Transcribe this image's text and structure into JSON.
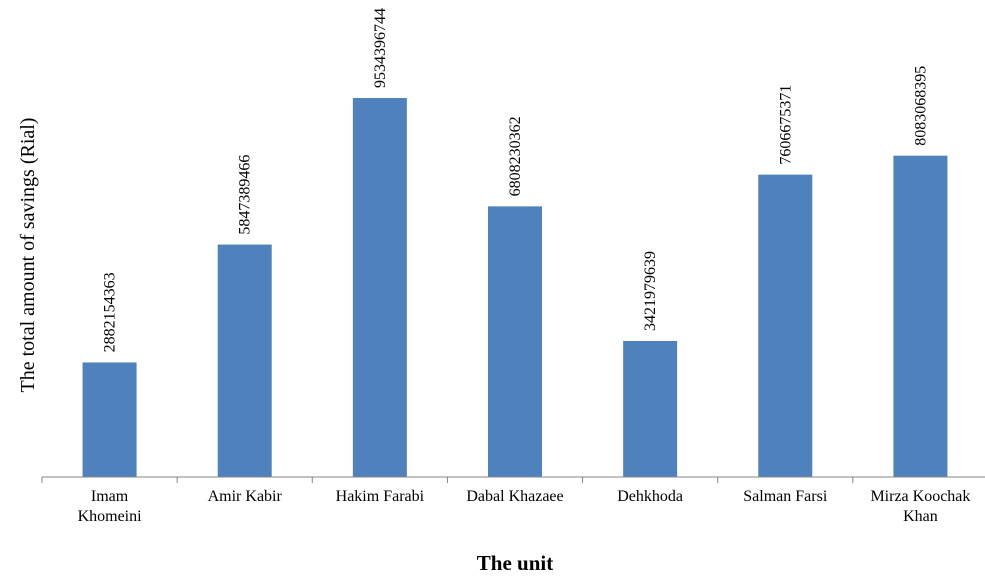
{
  "chart_data": {
    "type": "bar",
    "title": "",
    "xlabel": "The unit",
    "ylabel": "The total amount of savings (Rial)",
    "categories": [
      "Imam Khomeini",
      "Amir Kabir",
      "Hakim Farabi",
      "Dabal Khazaee",
      "Dehkhoda",
      "Salman Farsi",
      "Mirza Koochak Khan"
    ],
    "category_lines": [
      [
        "Imam",
        "Khomeini"
      ],
      [
        "Amir Kabir"
      ],
      [
        "Hakim Farabi"
      ],
      [
        "Dabal Khazaee"
      ],
      [
        "Dehkhoda"
      ],
      [
        "Salman Farsi"
      ],
      [
        "Mirza Koochak",
        "Khan"
      ]
    ],
    "values": [
      2882154363,
      5847389466,
      9534396744,
      6808230362,
      3421979639,
      7606675371,
      8083068395
    ],
    "data_labels": [
      "2882154363",
      "5847389466",
      "9534396744",
      "6808230362",
      "3421979639",
      "7606675371",
      "8083068395"
    ],
    "ylim": [
      0,
      12000000000
    ],
    "grid": false,
    "legend": "none",
    "bar_color": "#4F81BD",
    "axis_color": "#868686"
  }
}
